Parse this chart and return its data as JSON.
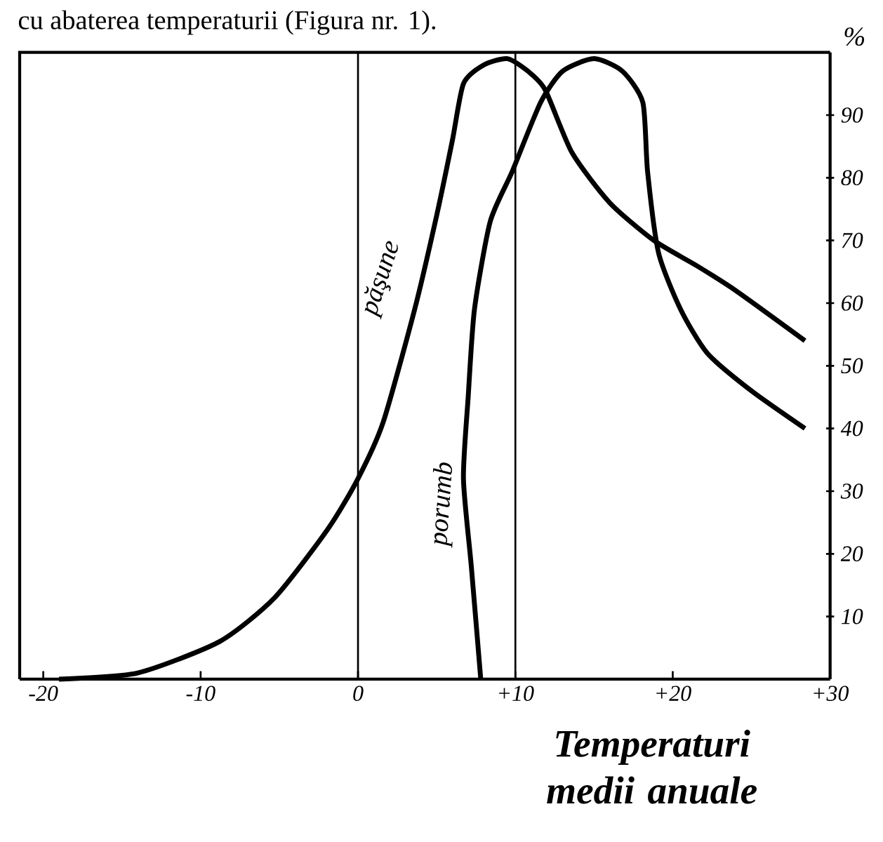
{
  "chart_data": {
    "type": "line",
    "annotations": [
      "cu abaterea temperaturii (Figura nr. 1)."
    ],
    "xlabel": "Temperaturi medii anuale",
    "ylabel": "%",
    "xlim": [
      -21.5,
      30
    ],
    "ylim": [
      0,
      100
    ],
    "xticks": [
      -20,
      -10,
      0,
      {
        "value": 10,
        "label": "+10"
      },
      {
        "value": 20,
        "label": "+20"
      },
      {
        "value": 30,
        "label": "+30"
      }
    ],
    "yticks": [
      10,
      20,
      30,
      40,
      50,
      60,
      70,
      80,
      90
    ],
    "ref_lines": [
      {
        "axis": "x",
        "value": 0
      },
      {
        "axis": "x",
        "value": 10
      }
    ],
    "grid": false,
    "legend": false,
    "marker": "none",
    "line_style": "solid",
    "series": [
      {
        "name": "păşune",
        "color": "#000000",
        "x": [
          -19,
          -14,
          -8.8,
          -5.3,
          -1.9,
          0,
          1.6,
          3.6,
          5,
          6,
          6.7,
          8,
          9.5,
          10.8,
          11.9,
          13.6,
          16,
          18.8,
          21.5,
          24,
          28.4
        ],
        "values": [
          0,
          1,
          6,
          13,
          24,
          32,
          41,
          59,
          74,
          86,
          95,
          98,
          99,
          97,
          94,
          84,
          76,
          70,
          66,
          62,
          54
        ]
      },
      {
        "name": "porumb",
        "color": "#000000",
        "x": [
          7.8,
          7.2,
          6.7,
          7,
          7.4,
          8.4,
          9.8,
          11.6,
          13,
          15,
          16.8,
          18.1,
          18.4,
          19.1,
          20.5,
          22.2,
          25,
          28.4
        ],
        "values": [
          0,
          18,
          32,
          45,
          59,
          73,
          81,
          92,
          97,
          99,
          97,
          92,
          81,
          68,
          59,
          52,
          46,
          40
        ]
      }
    ]
  }
}
